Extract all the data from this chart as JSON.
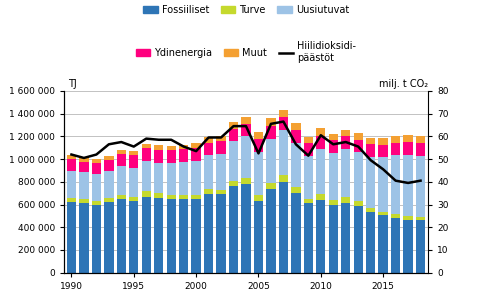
{
  "years": [
    1990,
    1991,
    1992,
    1993,
    1994,
    1995,
    1996,
    1997,
    1998,
    1999,
    2000,
    2001,
    2002,
    2003,
    2004,
    2005,
    2006,
    2007,
    2008,
    2009,
    2010,
    2011,
    2012,
    2013,
    2014,
    2015,
    2016,
    2017,
    2018
  ],
  "fossiiliset": [
    625000,
    615000,
    600000,
    620000,
    645000,
    630000,
    670000,
    655000,
    645000,
    650000,
    645000,
    695000,
    690000,
    760000,
    780000,
    635000,
    740000,
    800000,
    705000,
    615000,
    640000,
    595000,
    615000,
    585000,
    535000,
    505000,
    480000,
    465000,
    460000
  ],
  "turve": [
    32000,
    37000,
    35000,
    40000,
    42000,
    38000,
    48000,
    46000,
    42000,
    38000,
    40000,
    40000,
    38000,
    48000,
    52000,
    48000,
    52000,
    58000,
    48000,
    38000,
    52000,
    42000,
    47000,
    45000,
    38000,
    32000,
    35000,
    32000,
    30000
  ],
  "uusiutuvat": [
    235000,
    238000,
    232000,
    238000,
    252000,
    252000,
    268000,
    268000,
    278000,
    288000,
    298000,
    298000,
    318000,
    348000,
    368000,
    378000,
    388000,
    398000,
    388000,
    378000,
    398000,
    418000,
    428000,
    428000,
    448000,
    478000,
    518000,
    538000,
    538000
  ],
  "ydinenergia": [
    105000,
    88000,
    97000,
    97000,
    102000,
    112000,
    112000,
    112000,
    112000,
    112000,
    112000,
    112000,
    112000,
    112000,
    112000,
    112000,
    112000,
    112000,
    112000,
    112000,
    112000,
    112000,
    112000,
    112000,
    112000,
    112000,
    112000,
    112000,
    112000
  ],
  "muut": [
    38000,
    37000,
    33000,
    33000,
    38000,
    38000,
    38000,
    43000,
    38000,
    38000,
    43000,
    48000,
    43000,
    58000,
    58000,
    68000,
    68000,
    68000,
    62000,
    52000,
    68000,
    52000,
    58000,
    58000,
    52000,
    58000,
    58000,
    63000,
    63000
  ],
  "co2": [
    52.0,
    50.5,
    52.0,
    56.5,
    57.5,
    55.5,
    59.0,
    58.5,
    58.5,
    55.5,
    53.5,
    59.5,
    59.5,
    64.5,
    64.5,
    52.5,
    65.5,
    66.5,
    56.5,
    51.5,
    60.5,
    56.5,
    57.5,
    55.5,
    49.5,
    45.5,
    40.5,
    39.5,
    40.5
  ],
  "colors": {
    "fossiiliset": "#2E75B6",
    "turve": "#C5D92D",
    "uusiutuvat": "#9DC3E6",
    "ydinenergia": "#FF007F",
    "muut": "#F4A032"
  },
  "co2_color": "#000000",
  "ylim_left": [
    0,
    1600000
  ],
  "ylim_right": [
    0,
    80
  ],
  "yticks_left": [
    0,
    200000,
    400000,
    600000,
    800000,
    1000000,
    1200000,
    1400000,
    1600000
  ],
  "yticks_right": [
    0,
    10,
    20,
    30,
    40,
    50,
    60,
    70,
    80
  ],
  "ylabel_left": "TJ",
  "ylabel_right": "milj. t CO₂",
  "bg_color": "#FFFFFF",
  "grid_color": "#AAAAAA",
  "legend_row1": [
    "Fossiiliset",
    "Turve",
    "Uusiutuvat"
  ],
  "legend_row2": [
    "Ydinenergia",
    "Muut",
    "Hiilidioksidi-\npäästöt"
  ]
}
